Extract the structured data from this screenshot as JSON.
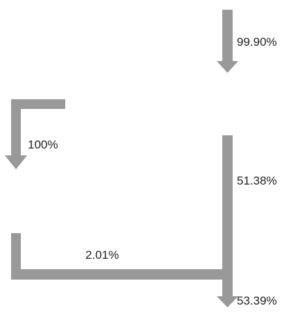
{
  "diagram": {
    "arrow_color": "#999999",
    "text_color": "#222222",
    "labels": {
      "top_arrow": "99.90%",
      "left_elbow_arrow": "100%",
      "right_vertical": "51.38%",
      "bottom_horizontal": "2.01%",
      "bottom_arrow": "53.39%"
    }
  }
}
